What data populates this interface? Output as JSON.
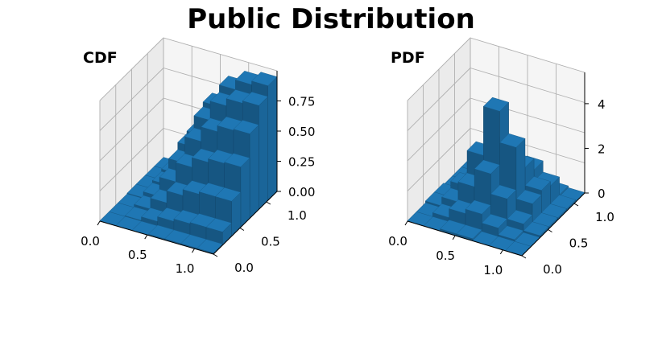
{
  "figure": {
    "title": "Public Distribution",
    "color": "#1f77b4"
  },
  "chart_data": [
    {
      "type": "surface3d",
      "title": "CDF",
      "render": "bar3d",
      "x_ticks": [
        "0.0",
        "0.5",
        "1.0"
      ],
      "y_ticks": [
        "0.0",
        "0.5",
        "1.0"
      ],
      "z_ticks": [
        "0.00",
        "0.25",
        "0.50",
        "0.75"
      ],
      "xlim": [
        0,
        1.2
      ],
      "ylim": [
        0,
        1.2
      ],
      "zlim": [
        0,
        1
      ],
      "x_values": [
        0.0,
        0.2,
        0.4,
        0.6,
        0.8,
        1.0,
        1.2
      ],
      "y_values": [
        0.0,
        0.2,
        0.4,
        0.6,
        0.8,
        1.0,
        1.2
      ],
      "z_values": [
        [
          0.0,
          0.0,
          0.0,
          0.01,
          0.01,
          0.01,
          0.01
        ],
        [
          0.0,
          0.01,
          0.04,
          0.08,
          0.1,
          0.11,
          0.11
        ],
        [
          0.0,
          0.03,
          0.12,
          0.22,
          0.27,
          0.29,
          0.29
        ],
        [
          0.01,
          0.06,
          0.22,
          0.38,
          0.46,
          0.49,
          0.5
        ],
        [
          0.01,
          0.08,
          0.3,
          0.52,
          0.64,
          0.69,
          0.7
        ],
        [
          0.01,
          0.1,
          0.36,
          0.62,
          0.78,
          0.84,
          0.86
        ],
        [
          0.01,
          0.1,
          0.38,
          0.66,
          0.84,
          0.92,
          0.95
        ]
      ],
      "grid": true
    },
    {
      "type": "surface3d",
      "title": "PDF",
      "render": "bar3d",
      "x_ticks": [
        "0.0",
        "0.5",
        "1.0"
      ],
      "y_ticks": [
        "0.0",
        "0.5",
        "1.0"
      ],
      "z_ticks": [
        "0",
        "2",
        "4"
      ],
      "xlim": [
        0,
        1.2
      ],
      "ylim": [
        0,
        1.2
      ],
      "zlim": [
        0,
        5.4
      ],
      "x_values": [
        0.0,
        0.2,
        0.4,
        0.6,
        0.8,
        1.0,
        1.2
      ],
      "y_values": [
        0.0,
        0.2,
        0.4,
        0.6,
        0.8,
        1.0,
        1.2
      ],
      "z_values": [
        [
          0.0,
          0.0,
          0.1,
          0.1,
          0.0,
          0.0,
          0.0
        ],
        [
          0.0,
          0.2,
          0.6,
          0.8,
          0.4,
          0.1,
          0.0
        ],
        [
          0.1,
          0.5,
          1.4,
          2.2,
          1.3,
          0.4,
          0.1
        ],
        [
          0.1,
          0.8,
          2.4,
          4.6,
          3.2,
          0.9,
          0.1
        ],
        [
          0.0,
          0.5,
          1.6,
          2.5,
          1.9,
          1.1,
          0.1
        ],
        [
          0.0,
          0.2,
          0.6,
          0.9,
          1.4,
          0.9,
          0.1
        ],
        [
          0.0,
          0.0,
          0.1,
          0.1,
          0.2,
          0.1,
          0.0
        ]
      ],
      "grid": true
    }
  ]
}
